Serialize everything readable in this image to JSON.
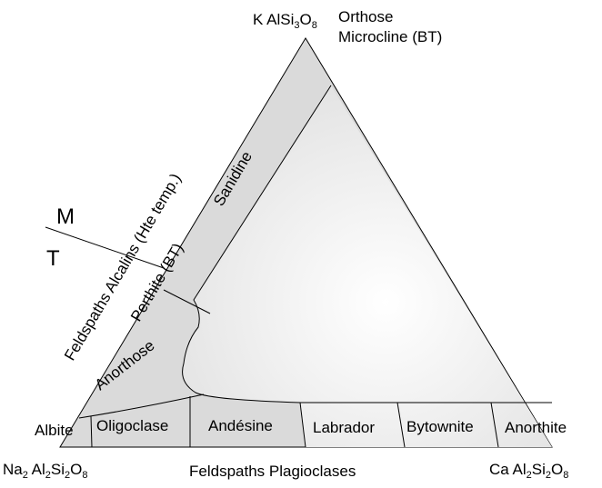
{
  "apex_top": {
    "formula_prefix": "K AlSi",
    "sub1": "3",
    "mid": "O",
    "sub2": "8",
    "name_1": "Orthose",
    "name_2": "Microcline (BT)"
  },
  "apex_left": {
    "prefix": "Na",
    "sub1": "2",
    "mid": " Al",
    "sub2": "2",
    "mid2": "Si",
    "sub3": "2",
    "mid3": "O",
    "sub4": "8"
  },
  "apex_right": {
    "prefix": "Ca Al",
    "sub1": "2",
    "mid": "Si",
    "sub2": "2",
    "mid2": "O",
    "sub3": "8"
  },
  "axis_bottom_label": "Feldspaths Plagioclases",
  "axis_left_label": "Feldspaths Alcalins (Hte temp.)",
  "region_labels": {
    "sanidine": "Sanidine",
    "perthite": "Perthite (BT)",
    "anorthose": "Anorthose",
    "albite": "Albite",
    "oligoclase": "Oligoclase",
    "andesine": "Andésine",
    "labrador": "Labrador",
    "bytownite": "Bytownite",
    "anorthite": "Anorthite"
  },
  "mt_marker": {
    "m": "M",
    "t": "T"
  },
  "colors": {
    "fill_outer": "#dadada",
    "fill_inner": "#ececec",
    "stroke": "#000000"
  }
}
